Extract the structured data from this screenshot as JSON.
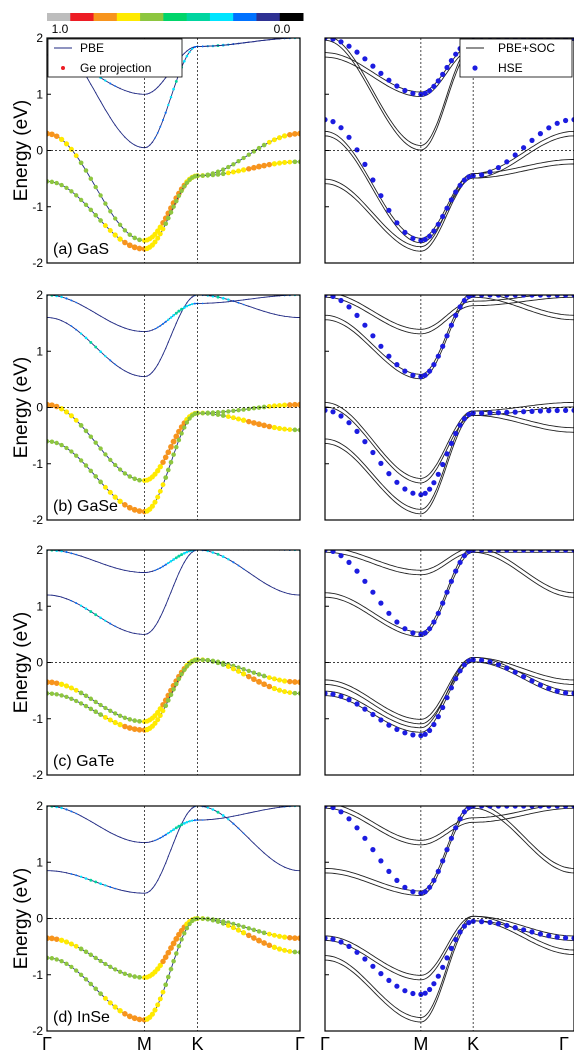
{
  "colorbar": {
    "label_max": "1.0",
    "label_min": "0.0",
    "colors": [
      "#bdbdbd",
      "#ed1c24",
      "#f7941d",
      "#ffea00",
      "#8dc63f",
      "#00d56a",
      "#00d5a0",
      "#00e5ff",
      "#0072ff",
      "#2e3192",
      "#000000"
    ]
  },
  "common": {
    "ylabel": "Energy (eV)",
    "yticks": [
      "2",
      "1",
      "0",
      "-1",
      "-2"
    ],
    "kpath": [
      "Γ",
      "M",
      "K",
      "Γ"
    ],
    "legend_left": {
      "pbe": "PBE",
      "proj": "Ge projection"
    },
    "legend_right": {
      "soc": "PBE+SOC",
      "hse": "HSE"
    },
    "colors": {
      "pbe_line": "#1f2a80",
      "soc_line": "#222222",
      "hse_dot": "#1c1ce0",
      "fermi": "#000000"
    }
  },
  "panels": [
    {
      "label": "(a) GaS"
    },
    {
      "label": "(b) GaSe"
    },
    {
      "label": "(c) GaTe"
    },
    {
      "label": "(d) InSe"
    }
  ],
  "chart_data": [
    {
      "type": "line",
      "material": "GaS",
      "x": [
        "Γ",
        "M",
        "K",
        "Γ"
      ],
      "ylim": [
        -2,
        2
      ],
      "ylabel": "Energy (eV)",
      "series": [
        {
          "values": [
            0.3,
            -1.6,
            -0.45,
            0.3
          ]
        },
        {
          "values": [
            -0.55,
            -1.75,
            -0.45,
            -0.2
          ]
        },
        {
          "values": [
            1.7,
            1.0,
            1.85,
            2.0
          ]
        },
        {
          "values": [
            2.0,
            0.05,
            1.85,
            2.0
          ]
        }
      ],
      "hse_bands": [
        {
          "values": [
            0.55,
            -1.6,
            -0.45,
            0.55
          ]
        },
        {
          "values": [
            2.0,
            1.0,
            1.95,
            2.0
          ]
        }
      ]
    },
    {
      "type": "line",
      "material": "GaSe",
      "x": [
        "Γ",
        "M",
        "K",
        "Γ"
      ],
      "ylim": [
        -2,
        2
      ],
      "ylabel": "Energy (eV)",
      "series": [
        {
          "values": [
            0.05,
            -1.3,
            -0.1,
            0.05
          ]
        },
        {
          "values": [
            -0.6,
            -1.85,
            -0.1,
            -0.4
          ]
        },
        {
          "values": [
            1.6,
            0.55,
            2.0,
            1.6
          ]
        },
        {
          "values": [
            2.0,
            1.35,
            1.85,
            2.0
          ]
        }
      ],
      "hse_bands": [
        {
          "values": [
            -0.05,
            -1.55,
            -0.1,
            -0.05
          ]
        },
        {
          "values": [
            2.0,
            0.55,
            2.0,
            2.0
          ]
        }
      ]
    },
    {
      "type": "line",
      "material": "GaTe",
      "x": [
        "Γ",
        "M",
        "K",
        "Γ"
      ],
      "ylim": [
        -2,
        2
      ],
      "ylabel": "Energy (eV)",
      "series": [
        {
          "values": [
            -0.35,
            -1.05,
            0.05,
            -0.35
          ]
        },
        {
          "values": [
            -0.55,
            -1.2,
            0.05,
            -0.55
          ]
        },
        {
          "values": [
            1.2,
            0.5,
            2.0,
            1.2
          ]
        },
        {
          "values": [
            2.0,
            1.6,
            2.0,
            2.0
          ]
        }
      ],
      "hse_bands": [
        {
          "values": [
            -0.55,
            -1.3,
            0.05,
            -0.55
          ]
        },
        {
          "values": [
            2.0,
            0.5,
            2.0,
            2.0
          ]
        }
      ]
    },
    {
      "type": "line",
      "material": "InSe",
      "x": [
        "Γ",
        "M",
        "K",
        "Γ"
      ],
      "ylim": [
        -2,
        2
      ],
      "ylabel": "Energy (eV)",
      "series": [
        {
          "values": [
            -0.35,
            -1.05,
            0.0,
            -0.35
          ]
        },
        {
          "values": [
            -0.7,
            -1.8,
            0.0,
            -0.6
          ]
        },
        {
          "values": [
            0.85,
            0.45,
            2.0,
            0.85
          ]
        },
        {
          "values": [
            2.0,
            1.35,
            1.75,
            2.0
          ]
        }
      ],
      "hse_bands": [
        {
          "values": [
            -0.35,
            -1.35,
            -0.05,
            -0.35
          ]
        },
        {
          "values": [
            2.0,
            0.45,
            2.0,
            2.0
          ]
        }
      ]
    }
  ]
}
